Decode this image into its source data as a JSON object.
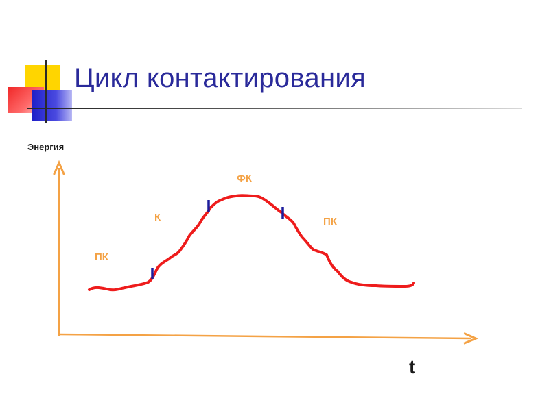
{
  "slide": {
    "title": "Цикл контактирования"
  },
  "colors": {
    "title": "#2a2a9a",
    "axis": "#f4a245",
    "curve": "#ee1c1c",
    "markers": "#1c1c9c",
    "phase_labels": "#f4a245",
    "text": "#1a1a1a"
  },
  "chart_data": {
    "type": "line",
    "ylabel": "Энергия",
    "xlabel": "t",
    "phases": [
      {
        "label": "ПК"
      },
      {
        "label": "К"
      },
      {
        "label": "ФК"
      },
      {
        "label": "ПК"
      }
    ],
    "boundary_markers": 3,
    "curve_shape": "low plateau, rise, peak, fall, low plateau"
  }
}
